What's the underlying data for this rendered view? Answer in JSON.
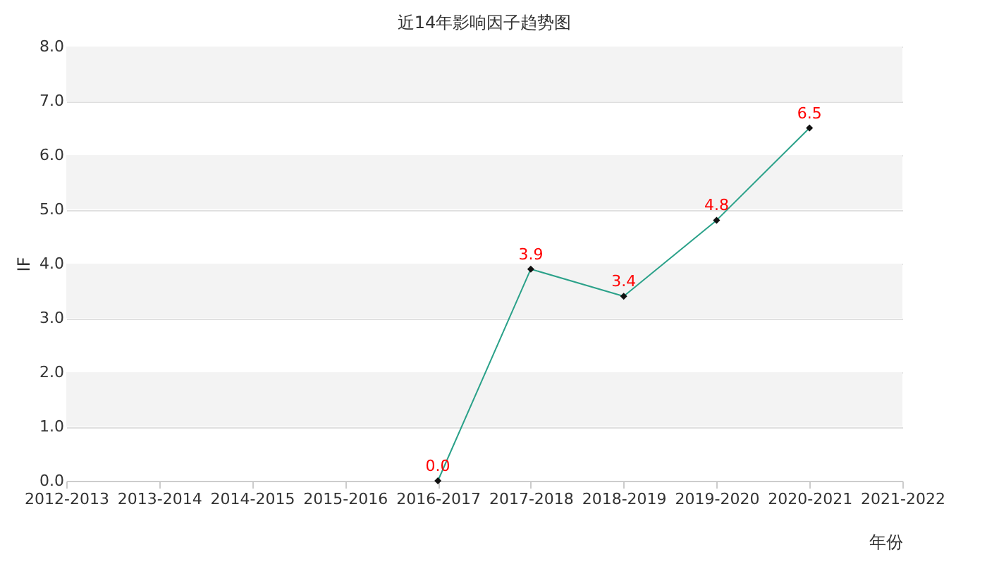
{
  "chart_data": {
    "type": "line",
    "title": "近14年影响因子趋势图",
    "xlabel": "年份",
    "ylabel": "IF",
    "categories": [
      "2012-2013",
      "2013-2014",
      "2014-2015",
      "2015-2016",
      "2016-2017",
      "2017-2018",
      "2018-2019",
      "2019-2020",
      "2020-2021",
      "2021-2022"
    ],
    "series": [
      {
        "color": "#2aa189",
        "values": [
          null,
          null,
          null,
          null,
          0.0,
          3.9,
          3.4,
          4.8,
          6.5,
          null
        ],
        "value_labels": [
          null,
          null,
          null,
          null,
          "0.0",
          "3.9",
          "3.4",
          "4.8",
          "6.5",
          null
        ]
      }
    ],
    "ylim": [
      0,
      8
    ],
    "yticks": [
      {
        "value": 0,
        "label": "0.0"
      },
      {
        "value": 1,
        "label": "1.0"
      },
      {
        "value": 2,
        "label": "2.0"
      },
      {
        "value": 3,
        "label": "3.0"
      },
      {
        "value": 4,
        "label": "4.0"
      },
      {
        "value": 5,
        "label": "5.0"
      },
      {
        "value": 6,
        "label": "6.0"
      },
      {
        "value": 7,
        "label": "7.0"
      },
      {
        "value": 8,
        "label": "8.0"
      }
    ],
    "bands": [
      {
        "axis": "y",
        "from": 1,
        "to": 2,
        "color": "#f3f3f3"
      },
      {
        "axis": "y",
        "from": 3,
        "to": 4,
        "color": "#f3f3f3"
      },
      {
        "axis": "y",
        "from": 5,
        "to": 6,
        "color": "#f3f3f3"
      },
      {
        "axis": "y",
        "from": 7,
        "to": 8,
        "color": "#f3f3f3"
      }
    ],
    "grid": "y",
    "marker": "diamond",
    "line_style": "solid"
  }
}
